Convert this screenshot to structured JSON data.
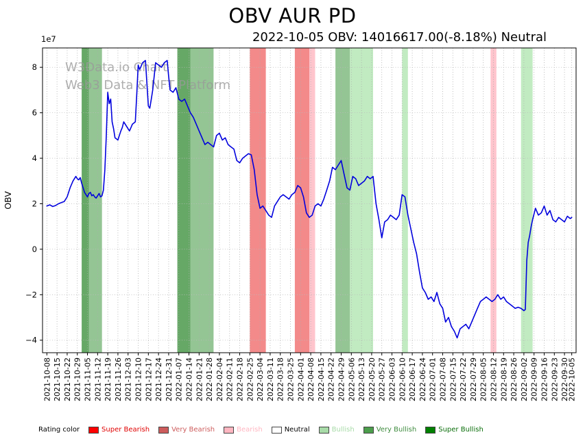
{
  "figure": {
    "title": "OBV AUR PD",
    "subtitle": "2022-10-05 OBV: 14016617.00(-8.18%) Neutral"
  },
  "watermark": {
    "line1": "W3Data.io Chart",
    "line2": "Web3 Data & NFT Platform"
  },
  "legend": {
    "label": "Rating color",
    "items": [
      {
        "rating": "super_bearish",
        "label": "Super Bearish",
        "swatch": "#ff0000",
        "text_color": "#e00000"
      },
      {
        "rating": "very_bearish",
        "label": "Very Bearish",
        "swatch": "#cd5c5c",
        "text_color": "#cd5c5c"
      },
      {
        "rating": "bearish",
        "label": "Bearish",
        "swatch": "#ffb6c1",
        "text_color": "#ffb6c1"
      },
      {
        "rating": "neutral",
        "label": "Neutral",
        "swatch": "#ffffff",
        "text_color": "#000000"
      },
      {
        "rating": "bullish",
        "label": "Bullish",
        "swatch": "#a8dba8",
        "text_color": "#a8dba8"
      },
      {
        "rating": "very_bullish",
        "label": "Very Bullish",
        "swatch": "#4c9e4c",
        "text_color": "#3d8b3d"
      },
      {
        "rating": "super_bullish",
        "label": "Super Bullish",
        "swatch": "#008000",
        "text_color": "#0a6e0a"
      }
    ]
  },
  "chart_data": {
    "type": "line",
    "title": "OBV AUR PD",
    "ylabel": "OBV",
    "y_offset_label": "1e7",
    "y_unit_multiplier": 10000000,
    "ylim": [
      -4.55,
      8.85
    ],
    "grid": true,
    "line_color": "#0000dd",
    "x_day0": "2021-10-08",
    "yticks": [
      {
        "v": -4,
        "l": "−4"
      },
      {
        "v": -2,
        "l": "−2"
      },
      {
        "v": 0,
        "l": "0"
      },
      {
        "v": 2,
        "l": "2"
      },
      {
        "v": 4,
        "l": "4"
      },
      {
        "v": 6,
        "l": "6"
      },
      {
        "v": 8,
        "l": "8"
      }
    ],
    "xticks": [
      {
        "d": 0,
        "l": "2021-10-08"
      },
      {
        "d": 7,
        "l": "2021-10-15"
      },
      {
        "d": 14,
        "l": "2021-10-22"
      },
      {
        "d": 21,
        "l": "2021-10-29"
      },
      {
        "d": 28,
        "l": "2021-11-05"
      },
      {
        "d": 35,
        "l": "2021-11-12"
      },
      {
        "d": 42,
        "l": "2021-11-19"
      },
      {
        "d": 49,
        "l": "2021-11-26"
      },
      {
        "d": 56,
        "l": "2021-12-03"
      },
      {
        "d": 63,
        "l": "2021-12-10"
      },
      {
        "d": 70,
        "l": "2021-12-17"
      },
      {
        "d": 77,
        "l": "2021-12-24"
      },
      {
        "d": 84,
        "l": "2021-12-31"
      },
      {
        "d": 91,
        "l": "2022-01-07"
      },
      {
        "d": 98,
        "l": "2022-01-14"
      },
      {
        "d": 105,
        "l": "2022-01-21"
      },
      {
        "d": 112,
        "l": "2022-01-28"
      },
      {
        "d": 119,
        "l": "2022-02-04"
      },
      {
        "d": 126,
        "l": "2022-02-11"
      },
      {
        "d": 133,
        "l": "2022-02-18"
      },
      {
        "d": 140,
        "l": "2022-02-25"
      },
      {
        "d": 147,
        "l": "2022-03-04"
      },
      {
        "d": 154,
        "l": "2022-03-11"
      },
      {
        "d": 161,
        "l": "2022-03-18"
      },
      {
        "d": 168,
        "l": "2022-03-25"
      },
      {
        "d": 175,
        "l": "2022-04-01"
      },
      {
        "d": 182,
        "l": "2022-04-08"
      },
      {
        "d": 189,
        "l": "2022-04-15"
      },
      {
        "d": 196,
        "l": "2022-04-22"
      },
      {
        "d": 203,
        "l": "2022-04-29"
      },
      {
        "d": 210,
        "l": "2022-05-06"
      },
      {
        "d": 217,
        "l": "2022-05-13"
      },
      {
        "d": 224,
        "l": "2022-05-20"
      },
      {
        "d": 231,
        "l": "2022-05-27"
      },
      {
        "d": 238,
        "l": "2022-06-03"
      },
      {
        "d": 245,
        "l": "2022-06-10"
      },
      {
        "d": 252,
        "l": "2022-06-17"
      },
      {
        "d": 259,
        "l": "2022-06-24"
      },
      {
        "d": 266,
        "l": "2022-07-01"
      },
      {
        "d": 273,
        "l": "2022-07-08"
      },
      {
        "d": 280,
        "l": "2022-07-15"
      },
      {
        "d": 287,
        "l": "2022-07-22"
      },
      {
        "d": 294,
        "l": "2022-07-29"
      },
      {
        "d": 301,
        "l": "2022-08-05"
      },
      {
        "d": 308,
        "l": "2022-08-12"
      },
      {
        "d": 315,
        "l": "2022-08-19"
      },
      {
        "d": 322,
        "l": "2022-08-26"
      },
      {
        "d": 329,
        "l": "2022-09-02"
      },
      {
        "d": 336,
        "l": "2022-09-09"
      },
      {
        "d": 343,
        "l": "2022-09-16"
      },
      {
        "d": 350,
        "l": "2022-09-23"
      },
      {
        "d": 357,
        "l": "2022-09-30"
      },
      {
        "d": 362,
        "l": "2022-10-05"
      }
    ],
    "rating_colors": {
      "super_bearish": "rgba(255,0,0,0.60)",
      "very_bearish": "rgba(235,60,60,0.60)",
      "bearish": "rgba(255,182,193,0.80)",
      "neutral": "rgba(255,255,255,0)",
      "bullish": "rgba(152,221,152,0.60)",
      "very_bullish": "rgba(60,150,60,0.55)",
      "super_bullish": "rgba(0,110,0,0.60)"
    },
    "bands": [
      {
        "start": 24,
        "end": 29,
        "rating": "super_bullish"
      },
      {
        "start": 29,
        "end": 38,
        "rating": "very_bullish"
      },
      {
        "start": 90,
        "end": 99,
        "rating": "super_bullish"
      },
      {
        "start": 99,
        "end": 115,
        "rating": "very_bullish"
      },
      {
        "start": 140,
        "end": 151,
        "rating": "very_bearish"
      },
      {
        "start": 171,
        "end": 181,
        "rating": "very_bearish"
      },
      {
        "start": 181,
        "end": 185,
        "rating": "bearish"
      },
      {
        "start": 199,
        "end": 209,
        "rating": "very_bullish"
      },
      {
        "start": 209,
        "end": 225,
        "rating": "bullish"
      },
      {
        "start": 245,
        "end": 249,
        "rating": "bullish"
      },
      {
        "start": 306,
        "end": 310,
        "rating": "bearish"
      },
      {
        "start": 327,
        "end": 335,
        "rating": "bullish"
      }
    ],
    "series": [
      {
        "name": "OBV",
        "points": [
          [
            0,
            1.9
          ],
          [
            2,
            1.95
          ],
          [
            4,
            1.88
          ],
          [
            6,
            1.92
          ],
          [
            8,
            2.0
          ],
          [
            10,
            2.05
          ],
          [
            12,
            2.1
          ],
          [
            14,
            2.3
          ],
          [
            16,
            2.7
          ],
          [
            18,
            3.0
          ],
          [
            20,
            3.2
          ],
          [
            21,
            3.1
          ],
          [
            22,
            3.05
          ],
          [
            23,
            3.15
          ],
          [
            24,
            2.9
          ],
          [
            26,
            2.5
          ],
          [
            28,
            2.3
          ],
          [
            29,
            2.45
          ],
          [
            30,
            2.5
          ],
          [
            31,
            2.35
          ],
          [
            32,
            2.4
          ],
          [
            33,
            2.3
          ],
          [
            34,
            2.25
          ],
          [
            35,
            2.35
          ],
          [
            36,
            2.45
          ],
          [
            37,
            2.3
          ],
          [
            38,
            2.35
          ],
          [
            39,
            2.6
          ],
          [
            40,
            3.5
          ],
          [
            41,
            5.0
          ],
          [
            42,
            6.9
          ],
          [
            43,
            6.4
          ],
          [
            44,
            6.6
          ],
          [
            45,
            5.6
          ],
          [
            46,
            5.3
          ],
          [
            47,
            4.9
          ],
          [
            48,
            4.85
          ],
          [
            49,
            4.8
          ],
          [
            50,
            5.0
          ],
          [
            51,
            5.2
          ],
          [
            52,
            5.35
          ],
          [
            53,
            5.6
          ],
          [
            54,
            5.5
          ],
          [
            55,
            5.4
          ],
          [
            56,
            5.3
          ],
          [
            57,
            5.2
          ],
          [
            58,
            5.35
          ],
          [
            59,
            5.5
          ],
          [
            60,
            5.55
          ],
          [
            61,
            5.6
          ],
          [
            62,
            6.8
          ],
          [
            63,
            8.1
          ],
          [
            64,
            7.9
          ],
          [
            65,
            8.05
          ],
          [
            66,
            8.2
          ],
          [
            67,
            8.25
          ],
          [
            68,
            8.3
          ],
          [
            69,
            7.3
          ],
          [
            70,
            6.3
          ],
          [
            71,
            6.2
          ],
          [
            72,
            6.6
          ],
          [
            73,
            7.0
          ],
          [
            74,
            7.6
          ],
          [
            75,
            8.2
          ],
          [
            76,
            8.15
          ],
          [
            77,
            8.1
          ],
          [
            78,
            8.05
          ],
          [
            79,
            8.0
          ],
          [
            80,
            8.1
          ],
          [
            81,
            8.2
          ],
          [
            82,
            8.25
          ],
          [
            83,
            8.3
          ],
          [
            84,
            7.6
          ],
          [
            85,
            7.0
          ],
          [
            86,
            6.95
          ],
          [
            87,
            6.9
          ],
          [
            88,
            7.0
          ],
          [
            89,
            7.1
          ],
          [
            90,
            6.85
          ],
          [
            91,
            6.6
          ],
          [
            92,
            6.55
          ],
          [
            93,
            6.5
          ],
          [
            94,
            6.55
          ],
          [
            95,
            6.6
          ],
          [
            96,
            6.45
          ],
          [
            97,
            6.3
          ],
          [
            98,
            6.15
          ],
          [
            99,
            6.0
          ],
          [
            101,
            5.8
          ],
          [
            103,
            5.5
          ],
          [
            105,
            5.2
          ],
          [
            107,
            4.9
          ],
          [
            109,
            4.6
          ],
          [
            111,
            4.7
          ],
          [
            113,
            4.6
          ],
          [
            115,
            4.5
          ],
          [
            117,
            5.0
          ],
          [
            119,
            5.1
          ],
          [
            121,
            4.8
          ],
          [
            123,
            4.9
          ],
          [
            125,
            4.6
          ],
          [
            127,
            4.5
          ],
          [
            129,
            4.4
          ],
          [
            131,
            3.9
          ],
          [
            133,
            3.8
          ],
          [
            135,
            4.0
          ],
          [
            137,
            4.1
          ],
          [
            139,
            4.2
          ],
          [
            141,
            4.15
          ],
          [
            143,
            3.5
          ],
          [
            145,
            2.4
          ],
          [
            147,
            1.8
          ],
          [
            149,
            1.9
          ],
          [
            151,
            1.7
          ],
          [
            153,
            1.5
          ],
          [
            155,
            1.4
          ],
          [
            157,
            1.9
          ],
          [
            159,
            2.1
          ],
          [
            161,
            2.3
          ],
          [
            163,
            2.4
          ],
          [
            165,
            2.3
          ],
          [
            167,
            2.2
          ],
          [
            169,
            2.4
          ],
          [
            171,
            2.5
          ],
          [
            173,
            2.8
          ],
          [
            175,
            2.7
          ],
          [
            177,
            2.3
          ],
          [
            179,
            1.6
          ],
          [
            181,
            1.4
          ],
          [
            183,
            1.5
          ],
          [
            185,
            1.9
          ],
          [
            187,
            2.0
          ],
          [
            189,
            1.9
          ],
          [
            191,
            2.2
          ],
          [
            193,
            2.6
          ],
          [
            195,
            3.0
          ],
          [
            197,
            3.6
          ],
          [
            199,
            3.5
          ],
          [
            201,
            3.7
          ],
          [
            203,
            3.9
          ],
          [
            205,
            3.3
          ],
          [
            207,
            2.7
          ],
          [
            209,
            2.6
          ],
          [
            211,
            3.2
          ],
          [
            213,
            3.1
          ],
          [
            215,
            2.8
          ],
          [
            217,
            2.9
          ],
          [
            219,
            3.0
          ],
          [
            221,
            3.2
          ],
          [
            223,
            3.1
          ],
          [
            225,
            3.2
          ],
          [
            227,
            2.0
          ],
          [
            229,
            1.3
          ],
          [
            231,
            0.5
          ],
          [
            233,
            1.2
          ],
          [
            235,
            1.3
          ],
          [
            237,
            1.5
          ],
          [
            239,
            1.4
          ],
          [
            241,
            1.3
          ],
          [
            243,
            1.5
          ],
          [
            245,
            2.4
          ],
          [
            247,
            2.3
          ],
          [
            249,
            1.5
          ],
          [
            251,
            0.9
          ],
          [
            253,
            0.3
          ],
          [
            255,
            -0.2
          ],
          [
            257,
            -1.0
          ],
          [
            259,
            -1.7
          ],
          [
            261,
            -1.9
          ],
          [
            263,
            -2.2
          ],
          [
            265,
            -2.1
          ],
          [
            267,
            -2.3
          ],
          [
            269,
            -1.9
          ],
          [
            271,
            -2.4
          ],
          [
            273,
            -2.6
          ],
          [
            275,
            -3.2
          ],
          [
            277,
            -3.0
          ],
          [
            279,
            -3.4
          ],
          [
            281,
            -3.6
          ],
          [
            283,
            -3.9
          ],
          [
            285,
            -3.5
          ],
          [
            287,
            -3.4
          ],
          [
            289,
            -3.3
          ],
          [
            291,
            -3.5
          ],
          [
            293,
            -3.2
          ],
          [
            295,
            -2.9
          ],
          [
            297,
            -2.6
          ],
          [
            299,
            -2.3
          ],
          [
            301,
            -2.2
          ],
          [
            303,
            -2.1
          ],
          [
            305,
            -2.2
          ],
          [
            307,
            -2.3
          ],
          [
            309,
            -2.2
          ],
          [
            311,
            -2.0
          ],
          [
            313,
            -2.2
          ],
          [
            315,
            -2.1
          ],
          [
            317,
            -2.3
          ],
          [
            319,
            -2.4
          ],
          [
            321,
            -2.5
          ],
          [
            323,
            -2.6
          ],
          [
            325,
            -2.55
          ],
          [
            327,
            -2.6
          ],
          [
            329,
            -2.7
          ],
          [
            330,
            -2.65
          ],
          [
            331,
            -0.5
          ],
          [
            332,
            0.3
          ],
          [
            333,
            0.6
          ],
          [
            334,
            1.0
          ],
          [
            335,
            1.3
          ],
          [
            337,
            1.8
          ],
          [
            339,
            1.5
          ],
          [
            341,
            1.6
          ],
          [
            343,
            1.9
          ],
          [
            345,
            1.5
          ],
          [
            347,
            1.7
          ],
          [
            349,
            1.3
          ],
          [
            351,
            1.2
          ],
          [
            353,
            1.4
          ],
          [
            355,
            1.3
          ],
          [
            357,
            1.2
          ],
          [
            359,
            1.45
          ],
          [
            361,
            1.35
          ],
          [
            362,
            1.4
          ]
        ]
      }
    ]
  }
}
